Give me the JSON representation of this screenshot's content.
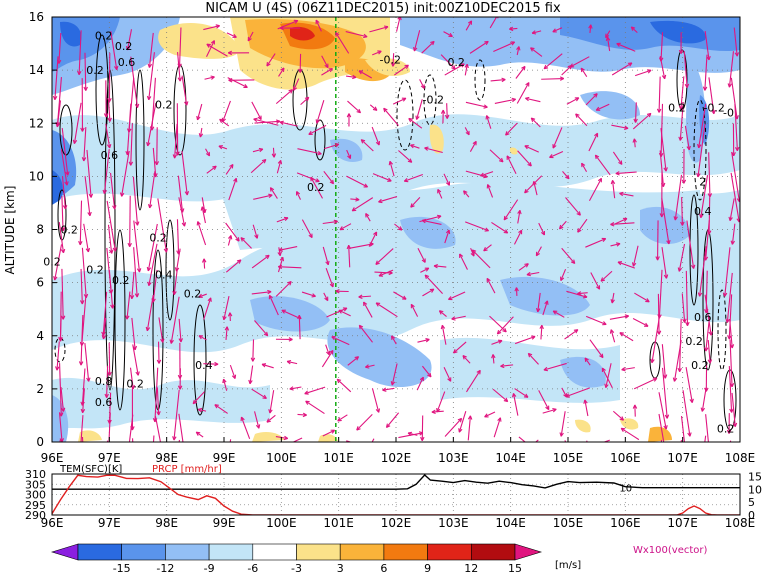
{
  "title": "NICAM  U  (4S)  (06Z11DEC2015)  init:00Z10DEC2015  fix",
  "colors": {
    "vector": "#e0157f",
    "contour": "#000000",
    "marker_line": "#11aa11",
    "prcp": "#e02020",
    "tem": "#000000",
    "fill_levels": [
      "#2a6ae0",
      "#5a94ec",
      "#93bff5",
      "#c3e5f7",
      "#ffffff",
      "#fbe28a",
      "#fab33a",
      "#f27a10",
      "#e02418",
      "#b20c10"
    ]
  },
  "chart_data": [
    {
      "type": "heatmap",
      "title": "NICAM  U  (4S)  (06Z11DEC2015)  init:00Z10DEC2015  fix",
      "xlabel": "",
      "ylabel": "ALTITUDE [km]",
      "x_ticks": [
        "96E",
        "97E",
        "98E",
        "99E",
        "100E",
        "101E",
        "102E",
        "103E",
        "104E",
        "105E",
        "106E",
        "107E",
        "108E"
      ],
      "xlim": [
        96,
        108
      ],
      "ylim": [
        0,
        16
      ],
      "y_ticks": [
        0,
        2,
        4,
        6,
        8,
        10,
        12,
        14,
        16
      ],
      "marker_x": 100.95,
      "contour_labels": [
        {
          "x": 96.9,
          "y": 15.3,
          "text": "0.2"
        },
        {
          "x": 97.25,
          "y": 14.9,
          "text": "0.2"
        },
        {
          "x": 97.3,
          "y": 14.3,
          "text": "0.6"
        },
        {
          "x": 96.75,
          "y": 14.0,
          "text": "0.2"
        },
        {
          "x": 97.95,
          "y": 12.7,
          "text": "0.2"
        },
        {
          "x": 97.0,
          "y": 10.8,
          "text": "0.6"
        },
        {
          "x": 100.6,
          "y": 9.6,
          "text": "0.2"
        },
        {
          "x": 101.9,
          "y": 14.4,
          "text": "-0.2"
        },
        {
          "x": 103.05,
          "y": 14.3,
          "text": "0.2"
        },
        {
          "x": 102.65,
          "y": 12.9,
          "text": "-0.2"
        },
        {
          "x": 106.9,
          "y": 12.6,
          "text": "0.2"
        },
        {
          "x": 107.55,
          "y": 12.6,
          "text": "-0.2"
        },
        {
          "x": 107.8,
          "y": 12.4,
          "text": "-0"
        },
        {
          "x": 107.35,
          "y": 9.8,
          "text": "2"
        },
        {
          "x": 107.35,
          "y": 8.7,
          "text": "0.4"
        },
        {
          "x": 96.3,
          "y": 8.0,
          "text": "0.2"
        },
        {
          "x": 97.85,
          "y": 7.7,
          "text": "0.2"
        },
        {
          "x": 96.0,
          "y": 6.8,
          "text": "0.2"
        },
        {
          "x": 96.75,
          "y": 6.5,
          "text": "0.2"
        },
        {
          "x": 97.2,
          "y": 6.1,
          "text": "0.2"
        },
        {
          "x": 97.95,
          "y": 6.3,
          "text": "0.4"
        },
        {
          "x": 98.45,
          "y": 5.6,
          "text": "0.2"
        },
        {
          "x": 107.35,
          "y": 4.7,
          "text": "0.6"
        },
        {
          "x": 107.2,
          "y": 3.8,
          "text": "0.2"
        },
        {
          "x": 98.65,
          "y": 2.9,
          "text": "0.4"
        },
        {
          "x": 107.3,
          "y": 2.9,
          "text": "0.2"
        },
        {
          "x": 96.9,
          "y": 2.3,
          "text": "0.8"
        },
        {
          "x": 97.45,
          "y": 2.2,
          "text": "0.2"
        },
        {
          "x": 96.9,
          "y": 1.5,
          "text": "0.6"
        },
        {
          "x": 107.75,
          "y": 0.5,
          "text": "0.2"
        }
      ]
    },
    {
      "type": "line",
      "xlim": [
        96,
        108
      ],
      "left_axis": {
        "label": "TEM(SFC)[K]",
        "ticks": [
          290,
          295,
          300,
          305,
          310
        ],
        "ylim": [
          290,
          310
        ]
      },
      "right_axis": {
        "label": "PRCP [mm/hr]",
        "ticks": [
          0,
          5,
          10,
          15
        ],
        "ylim": [
          0,
          16
        ]
      },
      "x_ticks": [
        "96E",
        "97E",
        "98E",
        "99E",
        "100E",
        "101E",
        "102E",
        "103E",
        "104E",
        "105E",
        "106E",
        "107E",
        "108E"
      ],
      "annotation": {
        "x": 106.0,
        "y": 303.5,
        "text": "10"
      },
      "series": [
        {
          "name": "TEM(SFC)[K]",
          "axis": "left",
          "x": [
            96.0,
            96.5,
            97.0,
            97.5,
            98.0,
            98.5,
            99.0,
            99.5,
            100.0,
            100.5,
            101.0,
            101.5,
            102.0,
            102.2,
            102.35,
            102.5,
            102.6,
            102.8,
            103.0,
            103.2,
            103.4,
            103.6,
            103.8,
            104.0,
            104.2,
            104.4,
            104.6,
            104.8,
            105.0,
            105.2,
            105.5,
            105.8,
            106.0,
            106.3,
            106.6,
            107.0,
            107.5,
            108.0
          ],
          "y": [
            302.6,
            302.6,
            302.6,
            302.6,
            302.6,
            302.6,
            302.6,
            302.6,
            302.6,
            302.6,
            302.6,
            302.6,
            302.6,
            302.8,
            305.0,
            309.5,
            307.0,
            306.5,
            305.8,
            306.8,
            306.0,
            305.5,
            306.5,
            305.8,
            304.8,
            304.2,
            303.2,
            305.0,
            306.3,
            305.8,
            306.0,
            305.6,
            303.8,
            303.3,
            303.3,
            303.3,
            303.3,
            303.3
          ]
        },
        {
          "name": "PRCP [mm/hr]",
          "axis": "right",
          "x": [
            96.0,
            96.15,
            96.3,
            96.45,
            96.6,
            96.8,
            96.95,
            97.1,
            97.3,
            97.5,
            97.7,
            97.9,
            98.05,
            98.2,
            98.35,
            98.55,
            98.7,
            98.85,
            99.0,
            99.15,
            99.3,
            99.5,
            100.0,
            101.0,
            102.0,
            103.0,
            104.0,
            105.0,
            106.0,
            106.9,
            107.0,
            107.1,
            107.2,
            107.3,
            107.4,
            107.5,
            107.6,
            108.0
          ],
          "y": [
            0.5,
            6.0,
            11.0,
            15.5,
            15.0,
            14.8,
            15.5,
            15.5,
            14.3,
            14.2,
            14.5,
            13.0,
            10.5,
            8.0,
            7.0,
            6.0,
            7.5,
            6.5,
            3.5,
            1.5,
            0.3,
            0,
            0,
            0,
            0,
            0,
            0,
            0,
            0,
            0,
            0.8,
            2.5,
            3.5,
            2.5,
            0.8,
            0.1,
            0,
            0
          ]
        }
      ]
    }
  ],
  "colorbar": {
    "ticks": [
      "-15",
      "-12",
      "-9",
      "-6",
      "-3",
      "3",
      "6",
      "9",
      "12",
      "15"
    ],
    "unit": "[m/s]"
  },
  "vector_label": "Wx100(vector)"
}
